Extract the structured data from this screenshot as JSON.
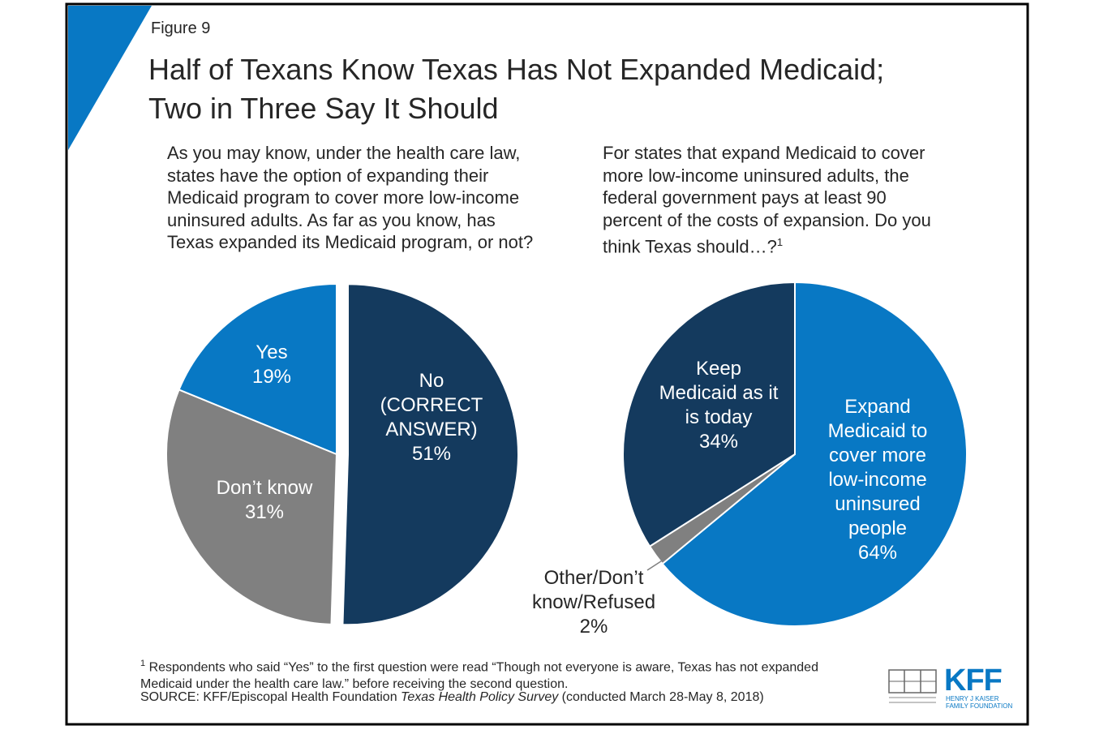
{
  "figure_label": "Figure 9",
  "title": [
    "Half of Texans Know Texas Has Not Expanded Medicaid;",
    "Two in Three Say It Should"
  ],
  "chart_data": [
    {
      "type": "pie",
      "subtitle": [
        "As you may know, under the health care law,",
        "states have the option of expanding their",
        "Medicaid program to cover more low-income",
        "uninsured adults. As far as you know, has",
        "Texas expanded its Medicaid program, or not?"
      ],
      "categories": [
        "No (CORRECT ANSWER)",
        "Don’t know",
        "Yes"
      ],
      "values": [
        51,
        31,
        19
      ],
      "value_labels": [
        "51%",
        "31%",
        "19%"
      ],
      "colors": [
        "#143a5e",
        "#808080",
        "#0878c4"
      ]
    },
    {
      "type": "pie",
      "subtitle": [
        "For states that expand Medicaid to cover",
        "more low-income uninsured adults, the",
        "federal government pays at least 90",
        "percent of the costs of expansion. Do you",
        "think Texas should…?"
      ],
      "subtitle_note": "1",
      "categories": [
        "Expand Medicaid to cover more low-income uninsured people",
        "Other/Don’t know/Refused",
        "Keep Medicaid as it is today"
      ],
      "values": [
        64,
        2,
        34
      ],
      "value_labels": [
        "64%",
        "2%",
        "34%"
      ],
      "colors": [
        "#0878c4",
        "#808080",
        "#143a5e"
      ]
    }
  ],
  "footnote": {
    "marker": "1",
    "text": "Respondents who said “Yes” to the first question were read “Though not everyone is aware, Texas has not expanded Medicaid under the health care law.” before receiving the second question."
  },
  "source": {
    "prefix": "SOURCE: KFF/Episcopal Health Foundation",
    "italic": "Texas Health Policy Survey",
    "suffix": "(conducted March 28-May 8, 2018)"
  },
  "logo": {
    "text": "KFF",
    "subtext": "HENRY J KAISER FAMILY FOUNDATION"
  }
}
